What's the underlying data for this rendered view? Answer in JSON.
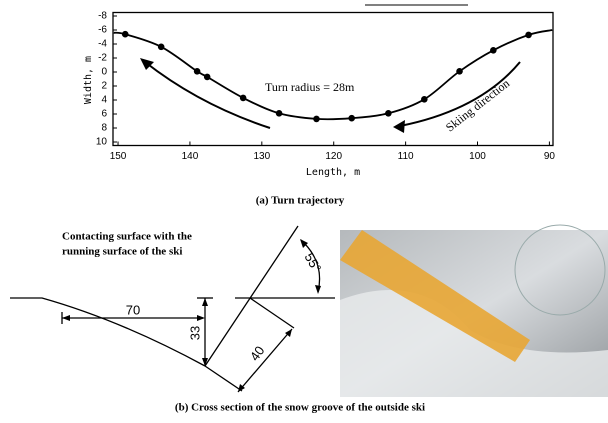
{
  "chart_data": {
    "type": "line",
    "x_label": "Length, m",
    "y_label": "Width, m",
    "xlim": [
      150.7,
      89.5
    ],
    "ylim": [
      -8.5,
      10.5
    ],
    "xticks": [
      150,
      140,
      130,
      120,
      110,
      100,
      90
    ],
    "yticks": [
      -8,
      -6,
      -4,
      -2,
      0,
      2,
      4,
      6,
      8,
      10
    ],
    "y_inverted": true,
    "x_reversed": true,
    "annotations": [
      "Turn radius = 28m",
      "Skiing direction"
    ],
    "caption": "(a) Turn trajectory",
    "series": [
      {
        "color": "#000000",
        "marker": false,
        "x": [
          150.6,
          149,
          144,
          139,
          137.6,
          132.6,
          127.6,
          122.4,
          117.5,
          112.4,
          107.4,
          102.5,
          97.8,
          92.9,
          89.6
        ],
        "values": [
          -5.6,
          -5.4,
          -3.6,
          -0.1,
          0.7,
          3.7,
          5.9,
          6.7,
          6.6,
          5.9,
          3.9,
          -0.1,
          -3.1,
          -5.3,
          -6.0
        ]
      },
      {
        "color": "#000000",
        "marker": true,
        "x": [
          149,
          144,
          139,
          137.6,
          132.6,
          127.6,
          122.4,
          117.5,
          112.4,
          107.4,
          102.5,
          97.8,
          92.9
        ],
        "values": [
          -5.4,
          -3.6,
          -0.1,
          0.7,
          3.7,
          5.9,
          6.7,
          6.6,
          5.9,
          3.9,
          -0.1,
          -3.1,
          -5.3
        ]
      }
    ]
  },
  "diagram": {
    "surface_label": [
      "Contacting surface with the",
      "running surface of the ski"
    ],
    "dimensions": [
      "70",
      "33",
      "40",
      "55°"
    ],
    "caption": "(b) Cross section of the snow groove of the outside ski"
  }
}
